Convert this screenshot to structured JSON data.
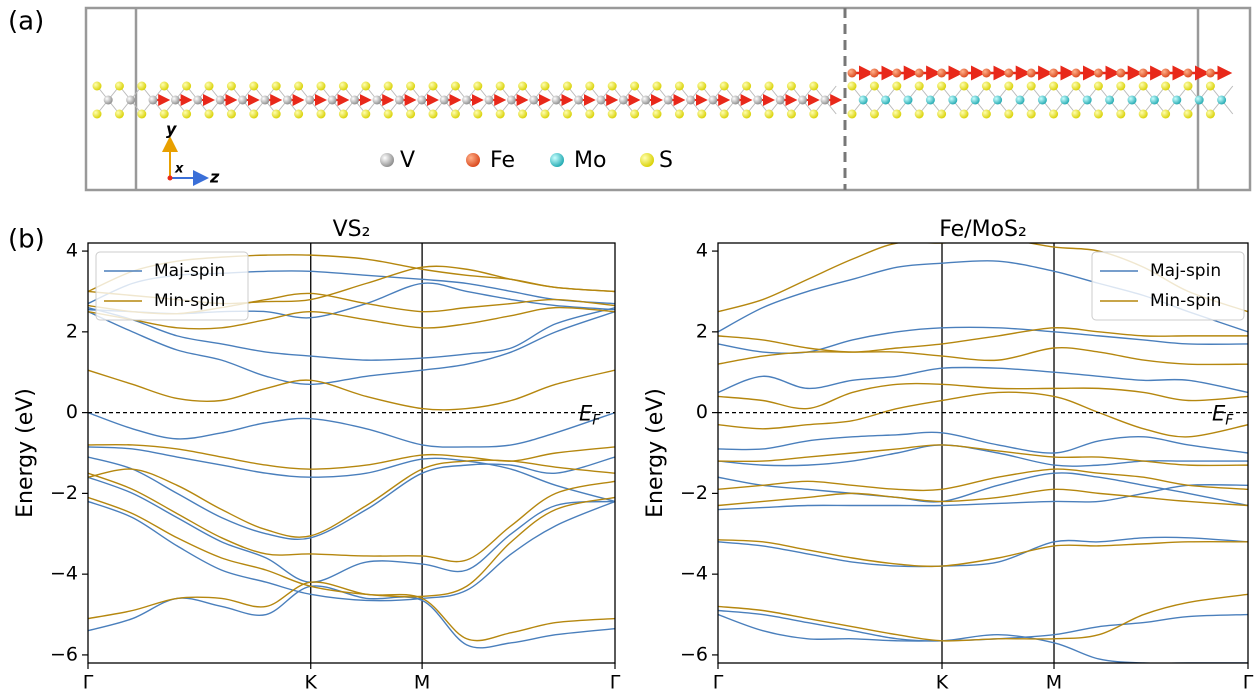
{
  "labels": {
    "a": "(a)",
    "b": "(b)"
  },
  "structure": {
    "legend": [
      "V",
      "Fe",
      "Mo",
      "S"
    ],
    "axes": [
      "y",
      "x",
      "z"
    ]
  },
  "chart_data": [
    {
      "type": "line",
      "title": "VS₂",
      "ylabel": "Energy (eV)",
      "annotation": {
        "main": "E",
        "sub": "F"
      },
      "fermi_level": 0,
      "legend": "upper left",
      "x": [
        0,
        0.2,
        0.4,
        0.6,
        0.8,
        1.0,
        1.25,
        1.5,
        1.7,
        1.9,
        2.1,
        2.366
      ],
      "xlim": [
        0,
        2.366
      ],
      "xticks": [
        {
          "value": 0,
          "label": "Γ"
        },
        {
          "value": 1,
          "label": "K"
        },
        {
          "value": 1.5,
          "label": "M"
        },
        {
          "value": 2.366,
          "label": "Γ"
        }
      ],
      "ylim": [
        -6.2,
        4.2
      ],
      "yticks": [
        {
          "value": -6,
          "label": "−6"
        },
        {
          "value": -4,
          "label": "−4"
        },
        {
          "value": -2,
          "label": "−2"
        },
        0,
        2,
        4
      ],
      "series": [
        {
          "name": "Maj-spin",
          "color": "#4a7fbc",
          "values": [
            [
              -5.4,
              -5.1,
              -4.6,
              -4.8,
              -5.0,
              -4.3,
              -4.6,
              -4.65,
              -5.75,
              -5.7,
              -5.5,
              -5.35
            ],
            [
              -2.2,
              -2.6,
              -3.3,
              -3.9,
              -4.2,
              -4.5,
              -4.65,
              -4.6,
              -4.4,
              -3.5,
              -2.8,
              -2.2
            ],
            [
              -1.6,
              -2.0,
              -2.6,
              -3.2,
              -3.6,
              -4.2,
              -3.7,
              -3.75,
              -3.9,
              -3.0,
              -2.3,
              -2.2
            ],
            [
              -1.1,
              -1.4,
              -2.0,
              -2.6,
              -3.0,
              -3.1,
              -2.4,
              -1.5,
              -1.3,
              -1.3,
              -1.5,
              -1.1
            ],
            [
              -0.85,
              -0.9,
              -1.1,
              -1.3,
              -1.5,
              -1.6,
              -1.5,
              -1.15,
              -1.2,
              -1.4,
              -1.8,
              -2.2
            ],
            [
              0.0,
              -0.4,
              -0.65,
              -0.5,
              -0.25,
              -0.15,
              -0.4,
              -0.8,
              -0.85,
              -0.8,
              -0.5,
              0.0
            ],
            [
              2.5,
              2.0,
              1.55,
              1.3,
              0.9,
              0.7,
              0.9,
              1.05,
              1.2,
              1.5,
              2.0,
              2.5
            ],
            [
              2.6,
              2.3,
              1.9,
              1.7,
              1.5,
              1.4,
              1.3,
              1.35,
              1.45,
              1.6,
              2.2,
              2.6
            ],
            [
              2.55,
              2.5,
              2.45,
              2.5,
              2.5,
              2.35,
              2.7,
              3.2,
              3.0,
              2.8,
              2.65,
              2.55
            ],
            [
              2.7,
              3.2,
              3.4,
              3.45,
              3.5,
              3.5,
              3.4,
              3.3,
              3.2,
              3.0,
              2.8,
              2.7
            ]
          ]
        },
        {
          "name": "Min-spin",
          "color": "#b5870f",
          "values": [
            [
              -5.1,
              -4.9,
              -4.6,
              -4.6,
              -4.8,
              -4.2,
              -4.5,
              -4.6,
              -5.6,
              -5.45,
              -5.2,
              -5.1
            ],
            [
              -2.1,
              -2.5,
              -3.1,
              -3.6,
              -3.9,
              -4.3,
              -4.5,
              -4.55,
              -4.3,
              -3.2,
              -2.4,
              -2.1
            ],
            [
              -1.5,
              -1.9,
              -2.5,
              -3.1,
              -3.5,
              -3.5,
              -3.55,
              -3.55,
              -3.65,
              -2.8,
              -2.0,
              -1.7
            ],
            [
              -1.6,
              -1.4,
              -1.8,
              -2.4,
              -2.9,
              -3.05,
              -2.3,
              -1.4,
              -1.2,
              -1.2,
              -1.35,
              -1.5
            ],
            [
              -0.8,
              -0.8,
              -0.9,
              -1.1,
              -1.3,
              -1.4,
              -1.3,
              -1.05,
              -1.1,
              -1.2,
              -1.0,
              -0.85
            ],
            [
              1.05,
              0.7,
              0.35,
              0.3,
              0.6,
              0.8,
              0.4,
              0.1,
              0.1,
              0.3,
              0.7,
              1.05
            ],
            [
              2.5,
              2.3,
              2.1,
              2.1,
              2.3,
              2.5,
              2.3,
              2.1,
              2.2,
              2.4,
              2.6,
              2.5
            ],
            [
              2.65,
              2.5,
              2.45,
              2.6,
              2.8,
              2.95,
              2.7,
              2.5,
              2.6,
              2.7,
              2.8,
              2.65
            ],
            [
              3.0,
              2.9,
              2.8,
              2.7,
              2.75,
              2.8,
              3.2,
              3.6,
              3.55,
              3.3,
              3.1,
              3.0
            ],
            [
              3.0,
              3.5,
              3.75,
              3.85,
              3.9,
              3.9,
              3.8,
              3.55,
              3.4,
              3.3,
              3.1,
              3.0
            ]
          ]
        }
      ]
    },
    {
      "type": "line",
      "title": "Fe/MoS₂",
      "ylabel": "Energy (eV)",
      "annotation": {
        "main": "E",
        "sub": "F"
      },
      "fermi_level": 0,
      "legend": "upper right",
      "x": [
        0,
        0.2,
        0.4,
        0.6,
        0.8,
        1.0,
        1.25,
        1.5,
        1.7,
        1.9,
        2.1,
        2.366
      ],
      "xlim": [
        0,
        2.366
      ],
      "xticks": [
        {
          "value": 0,
          "label": "Γ"
        },
        {
          "value": 1,
          "label": "K"
        },
        {
          "value": 1.5,
          "label": "M"
        },
        {
          "value": 2.366,
          "label": "Γ"
        }
      ],
      "ylim": [
        -6.2,
        4.2
      ],
      "yticks": [
        {
          "value": -6,
          "label": "−6"
        },
        {
          "value": -4,
          "label": "−4"
        },
        {
          "value": -2,
          "label": "−2"
        },
        0,
        2,
        4
      ],
      "series": [
        {
          "name": "Maj-spin",
          "color": "#4a7fbc",
          "values": [
            [
              -5.0,
              -5.4,
              -5.6,
              -5.6,
              -5.65,
              -5.65,
              -5.6,
              -5.5,
              -5.3,
              -5.2,
              -5.05,
              -5.0
            ],
            [
              -4.9,
              -5.0,
              -5.2,
              -5.4,
              -5.6,
              -5.65,
              -5.5,
              -5.7,
              -6.1,
              -6.2,
              -6.2,
              -6.2
            ],
            [
              -3.2,
              -3.3,
              -3.5,
              -3.7,
              -3.8,
              -3.8,
              -3.7,
              -3.2,
              -3.2,
              -3.1,
              -3.1,
              -3.2
            ],
            [
              -2.4,
              -2.35,
              -2.3,
              -2.3,
              -2.3,
              -2.3,
              -2.25,
              -2.2,
              -2.2,
              -2.0,
              -1.8,
              -1.8
            ],
            [
              -1.6,
              -1.8,
              -1.9,
              -2.0,
              -2.1,
              -2.2,
              -1.8,
              -1.5,
              -1.6,
              -1.8,
              -2.0,
              -2.3
            ],
            [
              -1.2,
              -1.3,
              -1.3,
              -1.2,
              -1.0,
              -0.8,
              -1.0,
              -1.3,
              -1.3,
              -1.2,
              -1.2,
              -1.2
            ],
            [
              -0.9,
              -0.9,
              -0.7,
              -0.6,
              -0.55,
              -0.5,
              -0.8,
              -1.0,
              -0.7,
              -0.6,
              -0.8,
              -1.0
            ],
            [
              0.5,
              0.9,
              0.6,
              0.8,
              0.9,
              1.1,
              1.1,
              1.0,
              0.9,
              0.8,
              0.8,
              0.5
            ],
            [
              1.7,
              1.5,
              1.5,
              1.8,
              2.0,
              2.1,
              2.1,
              2.0,
              1.9,
              1.8,
              1.7,
              1.7
            ],
            [
              2.0,
              2.6,
              3.0,
              3.3,
              3.6,
              3.7,
              3.75,
              3.5,
              3.2,
              2.9,
              2.5,
              2.0
            ]
          ]
        },
        {
          "name": "Min-spin",
          "color": "#b5870f",
          "values": [
            [
              -4.8,
              -4.9,
              -5.1,
              -5.3,
              -5.5,
              -5.65,
              -5.6,
              -5.6,
              -5.5,
              -5.0,
              -4.7,
              -4.5
            ],
            [
              -3.15,
              -3.2,
              -3.4,
              -3.6,
              -3.75,
              -3.8,
              -3.6,
              -3.3,
              -3.3,
              -3.25,
              -3.2,
              -3.2
            ],
            [
              -2.3,
              -2.2,
              -2.1,
              -2.0,
              -2.1,
              -2.2,
              -2.1,
              -1.9,
              -2.0,
              -2.1,
              -2.2,
              -2.3
            ],
            [
              -1.9,
              -1.8,
              -1.7,
              -1.8,
              -1.9,
              -1.9,
              -1.6,
              -1.4,
              -1.5,
              -1.6,
              -1.8,
              -1.9
            ],
            [
              -1.2,
              -1.2,
              -1.1,
              -1.0,
              -0.9,
              -0.8,
              -0.95,
              -1.1,
              -1.1,
              -1.2,
              -1.3,
              -1.3
            ],
            [
              -0.3,
              -0.4,
              -0.3,
              -0.2,
              0.1,
              0.3,
              0.5,
              0.4,
              0.0,
              -0.4,
              -0.6,
              -0.3
            ],
            [
              0.4,
              0.3,
              0.1,
              0.5,
              0.7,
              0.7,
              0.6,
              0.6,
              0.6,
              0.5,
              0.3,
              0.4
            ],
            [
              1.2,
              1.4,
              1.5,
              1.5,
              1.5,
              1.4,
              1.3,
              1.6,
              1.5,
              1.3,
              1.2,
              1.2
            ],
            [
              1.9,
              1.8,
              1.6,
              1.5,
              1.6,
              1.7,
              1.9,
              2.1,
              2.0,
              1.9,
              1.9,
              1.9
            ],
            [
              2.5,
              2.8,
              3.3,
              3.8,
              4.2,
              4.2,
              4.3,
              4.1,
              4.0,
              3.6,
              3.0,
              2.5
            ]
          ]
        }
      ]
    }
  ]
}
